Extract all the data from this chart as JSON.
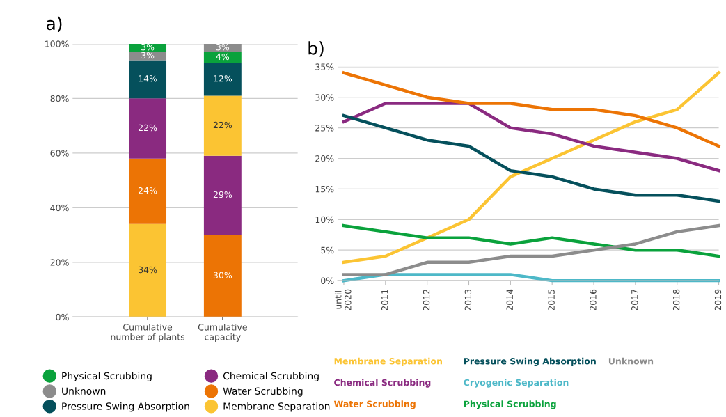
{
  "chart_data": [
    {
      "type": "bar",
      "title": "a)",
      "stacked": true,
      "categories": [
        "Cumulative\nnumber of plants",
        "Cumulative\ncapacity"
      ],
      "ylim": [
        0,
        100
      ],
      "yticks": [
        {
          "value": 0,
          "label": "0%"
        },
        {
          "value": 20,
          "label": "20%"
        },
        {
          "value": 40,
          "label": "40%"
        },
        {
          "value": 60,
          "label": "60%"
        },
        {
          "value": 80,
          "label": "80%"
        },
        {
          "value": 100,
          "label": "100%"
        }
      ],
      "grid": "y",
      "legend": "bottom",
      "series": [
        {
          "name": "Membrane Separation",
          "color": "#fbc433",
          "values": [
            34,
            null
          ],
          "value_labels": [
            "34%",
            null
          ]
        },
        {
          "name": "Water Scrubbing",
          "color": "#ec7405",
          "values": [
            24,
            30
          ],
          "value_labels": [
            "24%",
            "30%"
          ]
        },
        {
          "name": "Chemical Scrubbing",
          "color": "#8a2a80",
          "values": [
            22,
            29
          ],
          "value_labels": [
            "22%",
            "29%"
          ]
        },
        {
          "color": "#fbc433",
          "values": [
            null,
            22
          ],
          "value_labels": [
            null,
            "22%"
          ]
        },
        {
          "name": "Pressure Swing Absorption",
          "color": "#05505c",
          "values": [
            14,
            12
          ],
          "value_labels": [
            "14%",
            "12%"
          ]
        },
        {
          "color": "#0aa23c",
          "values": [
            null,
            4
          ],
          "value_labels": [
            null,
            "4%"
          ]
        },
        {
          "name": "Unknown",
          "color": "#8c8c8c",
          "values": [
            3,
            3
          ],
          "value_labels": [
            "3%",
            "3%"
          ]
        },
        {
          "name": "Physical Scrubbing",
          "color": "#0aa23c",
          "values": [
            3,
            null
          ],
          "value_labels": [
            "3%",
            null
          ]
        }
      ]
    },
    {
      "type": "line",
      "title": "b)",
      "categories": [
        "until\n2020",
        "2011",
        "2012",
        "2013",
        "2014",
        "2015",
        "2016",
        "2017",
        "2018",
        "2019"
      ],
      "ylim": [
        0,
        35
      ],
      "yticks": [
        {
          "value": 0,
          "label": "0%"
        },
        {
          "value": 5,
          "label": "5%"
        },
        {
          "value": 10,
          "label": "10%"
        },
        {
          "value": 15,
          "label": "15%"
        },
        {
          "value": 20,
          "label": "20%"
        },
        {
          "value": 25,
          "label": "25%"
        },
        {
          "value": 30,
          "label": "30%"
        },
        {
          "value": 35,
          "label": "35%"
        }
      ],
      "grid": "y",
      "legend": "bottom",
      "marker": "none",
      "line_style": "solid",
      "series": [
        {
          "name": "Membrane Separation",
          "color": "#fbc433",
          "values": [
            3,
            4,
            7,
            10,
            17,
            20,
            23,
            26,
            28,
            34
          ]
        },
        {
          "name": "Chemical Scrubbing",
          "color": "#8a2a80",
          "values": [
            26,
            29,
            29,
            29,
            25,
            24,
            22,
            21,
            20,
            18
          ]
        },
        {
          "name": "Water Scrubbing",
          "color": "#ec7405",
          "values": [
            34,
            32,
            30,
            29,
            29,
            28,
            28,
            27,
            25,
            22
          ]
        },
        {
          "name": "Pressure Swing Absorption",
          "color": "#05505c",
          "values": [
            27,
            25,
            23,
            22,
            18,
            17,
            15,
            14,
            14,
            13
          ]
        },
        {
          "name": "Cryogenic Separation",
          "color": "#4db8c8",
          "values": [
            0,
            1,
            1,
            1,
            1,
            0,
            0,
            0,
            0,
            0
          ]
        },
        {
          "name": "Physical Scrubbing",
          "color": "#0aa23c",
          "values": [
            9,
            8,
            7,
            7,
            6,
            7,
            6,
            5,
            5,
            4
          ]
        },
        {
          "name": "Unknown",
          "color": "#8c8c8c",
          "values": [
            1,
            1,
            3,
            3,
            4,
            4,
            5,
            6,
            8,
            9
          ]
        }
      ]
    }
  ]
}
